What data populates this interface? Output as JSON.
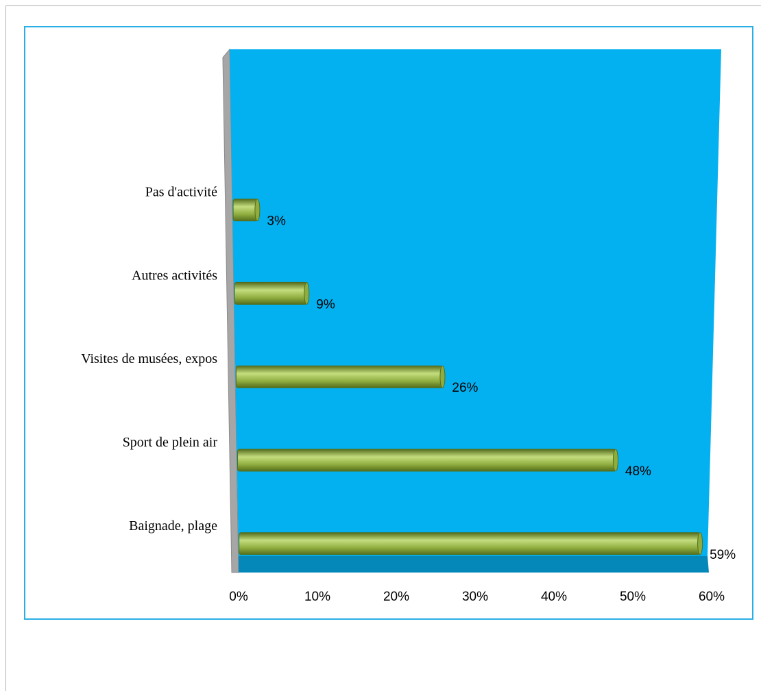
{
  "chart_data": {
    "type": "bar",
    "orientation": "horizontal",
    "categories": [
      "Pas d'activité",
      "Autres activités",
      "Visites de musées, expos",
      "Sport de plein air",
      "Baignade, plage"
    ],
    "values": [
      3,
      9,
      26,
      48,
      59
    ],
    "value_labels": [
      "3%",
      "9%",
      "26%",
      "48%",
      "59%"
    ],
    "xlim": [
      0,
      60
    ],
    "x_ticks": [
      0,
      10,
      20,
      30,
      40,
      50,
      60
    ],
    "x_tick_labels": [
      "0%",
      "10%",
      "20%",
      "30%",
      "40%",
      "50%",
      "60%"
    ],
    "grid": false,
    "legend": "none",
    "colors": {
      "plot_background": "#03b1f1",
      "floor": "#0487b9",
      "side_wall": "#a6a6a6",
      "bar": "#8fad3f",
      "bar_highlight": "#c4dd7e",
      "bar_shadow": "#556d1c",
      "frame_border": "#2aaee6"
    }
  }
}
